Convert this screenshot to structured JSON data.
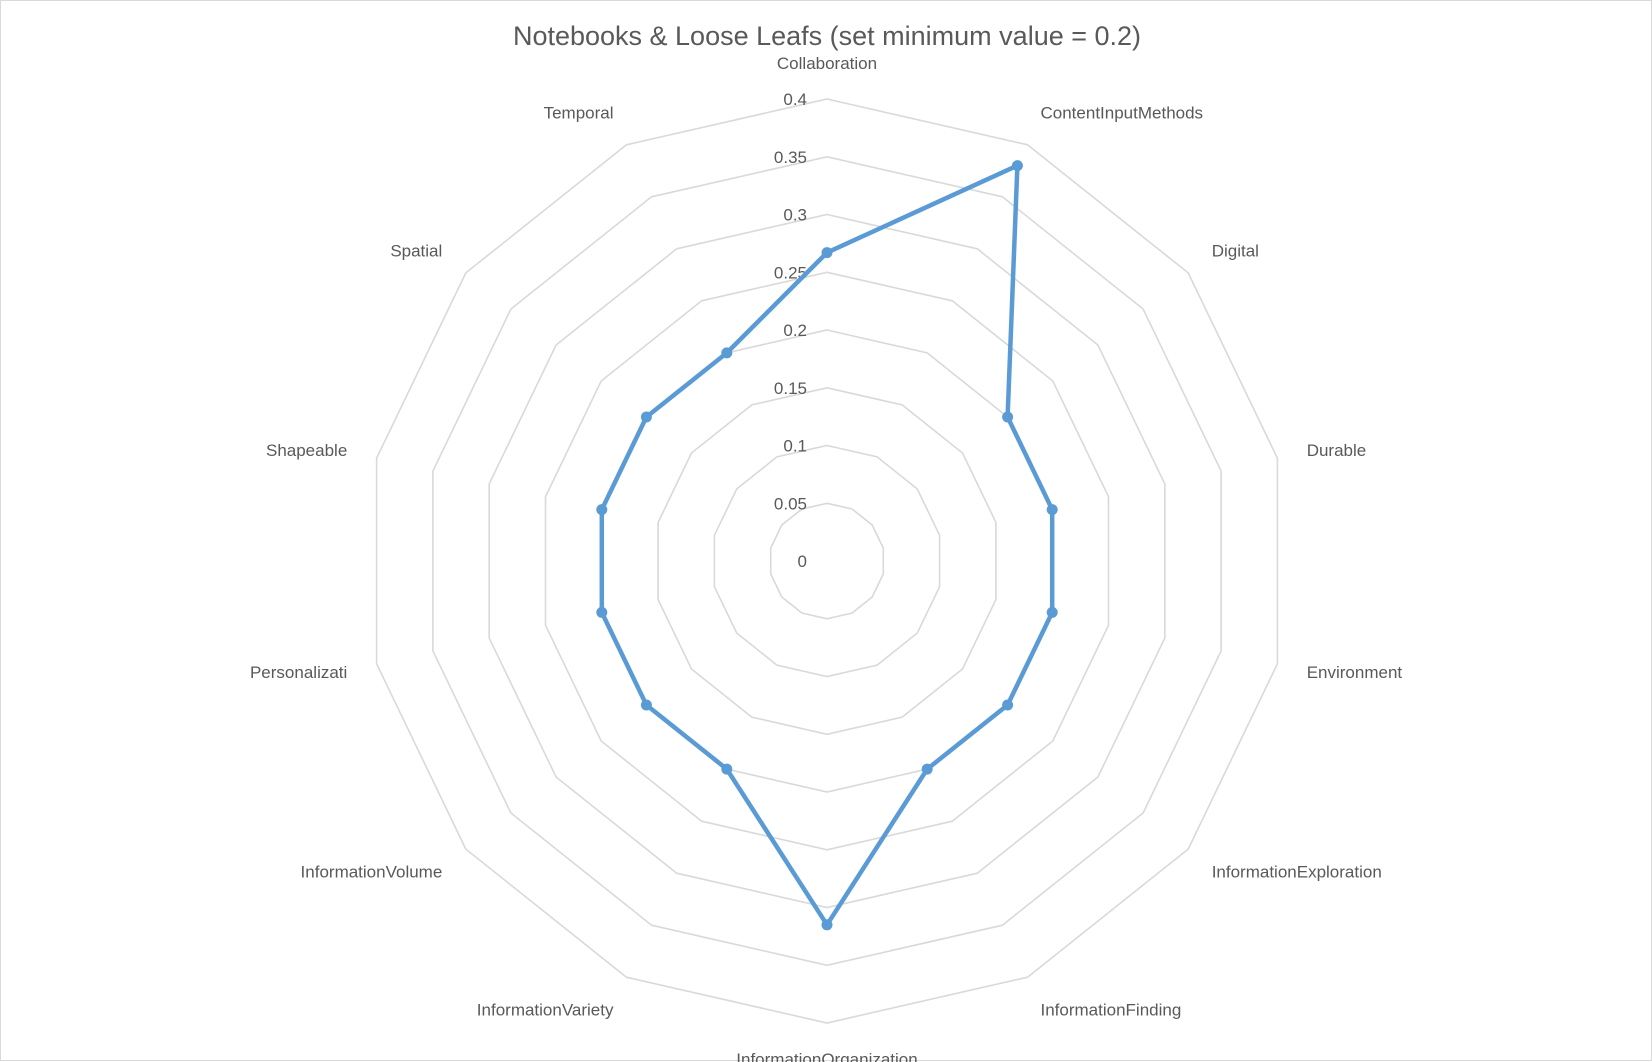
{
  "chart_data": {
    "type": "radar",
    "title": "Notebooks & Loose Leafs (set minimum value = 0.2)",
    "categories": [
      "Collaboration",
      "ContentInputMethods",
      "Digital",
      "Durable",
      "Environment",
      "InformationExploration",
      "InformationFinding",
      "InformationOrganization",
      "InformationVariety",
      "InformationVolume",
      "Personalizati",
      "Shapeable",
      "Spatial",
      "Temporal"
    ],
    "ticks": [
      "0",
      "0.05",
      "0.1",
      "0.15",
      "0.2",
      "0.25",
      "0.3",
      "0.35",
      "0.4"
    ],
    "rlim": [
      0,
      0.4
    ],
    "grid": true,
    "legend": "none",
    "series": [
      {
        "color": "#5b9bd5",
        "values": [
          0.267,
          0.38,
          0.2,
          0.2,
          0.2,
          0.2,
          0.2,
          0.315,
          0.2,
          0.2,
          0.2,
          0.2,
          0.2,
          0.2
        ]
      }
    ]
  }
}
